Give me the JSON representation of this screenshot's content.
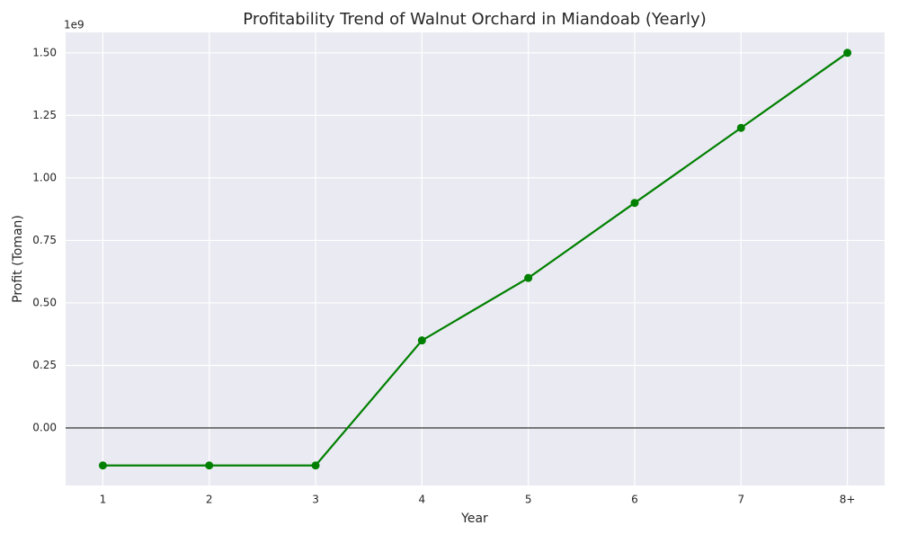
{
  "chart_data": {
    "type": "line",
    "title": "Profitability Trend of Walnut Orchard in Miandoab (Yearly)",
    "x_label": "Year",
    "y_label": "Profit (Toman)",
    "y_offset_label": "1e9",
    "categories": [
      "1",
      "2",
      "3",
      "4",
      "5",
      "6",
      "7",
      "8+"
    ],
    "values": [
      -150000000,
      -150000000,
      -150000000,
      350000000,
      600000000,
      900000000,
      1200000000,
      1500000000
    ],
    "color": "#008000",
    "ylim": [
      -230000000,
      1582000000
    ],
    "yticks": [
      {
        "value": 0,
        "label": "0.00"
      },
      {
        "value": 250000000,
        "label": "0.25"
      },
      {
        "value": 500000000,
        "label": "0.50"
      },
      {
        "value": 750000000,
        "label": "0.75"
      },
      {
        "value": 1000000000,
        "label": "1.00"
      },
      {
        "value": 1250000000,
        "label": "1.25"
      },
      {
        "value": 1500000000,
        "label": "1.50"
      }
    ],
    "hline": 0,
    "grid": true
  }
}
